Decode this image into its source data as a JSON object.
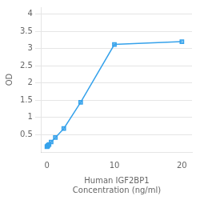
{
  "chart_data": {
    "type": "line",
    "xlabel": "Human IGF2BP1\nConcentration (ng/ml)",
    "ylabel": "OD",
    "x": [
      0,
      0.078,
      0.156,
      0.313,
      0.625,
      1.25,
      2.5,
      5,
      10,
      20
    ],
    "values": [
      0.152,
      0.168,
      0.188,
      0.22,
      0.29,
      0.42,
      0.68,
      1.44,
      3.12,
      3.2
    ],
    "xlim": [
      -0.8,
      21.5
    ],
    "ylim": [
      0,
      4.2
    ],
    "xticks": [
      0,
      10,
      20
    ],
    "yticks": [
      0.5,
      1,
      1.5,
      2,
      2.5,
      3,
      3.5,
      4
    ],
    "grid": "y",
    "marker": "square",
    "line_style": "solid"
  }
}
